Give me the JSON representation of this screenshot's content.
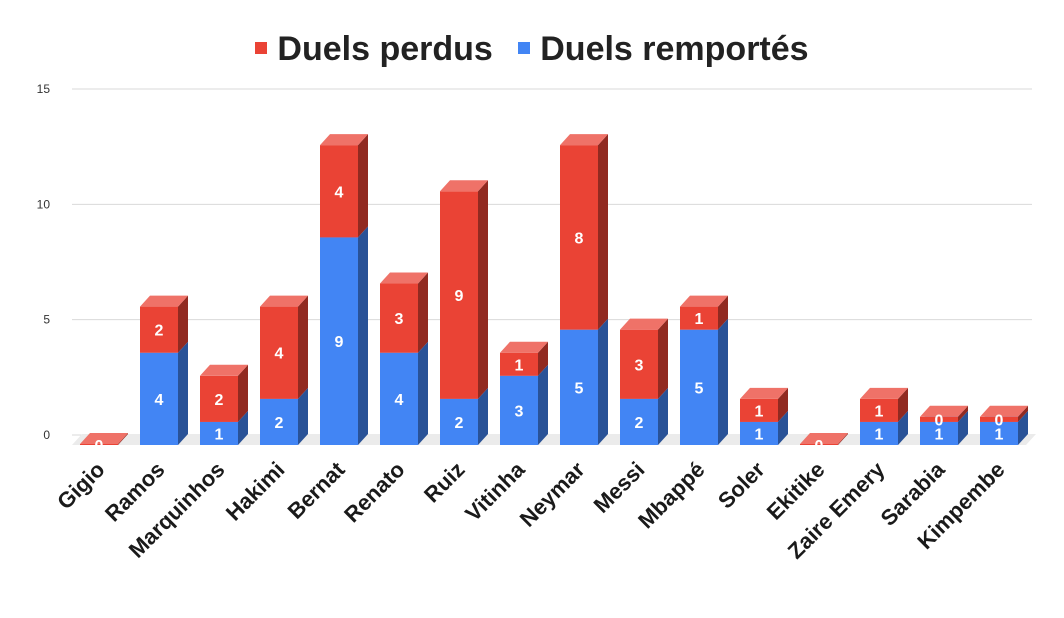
{
  "chart_data": {
    "type": "bar",
    "stacked": true,
    "style": "3d-column",
    "categories": [
      "Gigio",
      "Ramos",
      "Marquinhos",
      "Hakimi",
      "Bernat",
      "Renato",
      "Ruiz",
      "Vitinha",
      "Neymar",
      "Messi",
      "Mbappé",
      "Soler",
      "Ekitike",
      "Zaire Emery",
      "Sarabia",
      "Kimpembe"
    ],
    "series": [
      {
        "name": "Duels remportés",
        "color": "#4285f4",
        "values": [
          0,
          4,
          1,
          2,
          9,
          4,
          2,
          3,
          5,
          2,
          5,
          1,
          0,
          1,
          1,
          1
        ]
      },
      {
        "name": "Duels perdus",
        "color": "#ea4335",
        "values": [
          0,
          2,
          2,
          4,
          4,
          3,
          9,
          1,
          8,
          3,
          1,
          1,
          0,
          1,
          0,
          0
        ]
      }
    ],
    "yticks": [
      "0",
      "5",
      "10",
      "15"
    ],
    "ylim": [
      0,
      15
    ],
    "grid": true,
    "legend_position": "top",
    "legend_order": [
      "Duels perdus",
      "Duels remportés"
    ]
  }
}
